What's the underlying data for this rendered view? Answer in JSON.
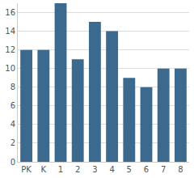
{
  "chart_data": {
    "type": "bar",
    "categories": [
      "PK",
      "K",
      "1",
      "2",
      "3",
      "4",
      "5",
      "6",
      "7",
      "8"
    ],
    "values": [
      12,
      12,
      17,
      11,
      15,
      14,
      9,
      8,
      10,
      10
    ],
    "color": "#3b6a8e",
    "ylim": [
      0,
      17
    ],
    "yticks": [
      0,
      2,
      4,
      6,
      8,
      10,
      12,
      14,
      16
    ],
    "grid": true
  }
}
